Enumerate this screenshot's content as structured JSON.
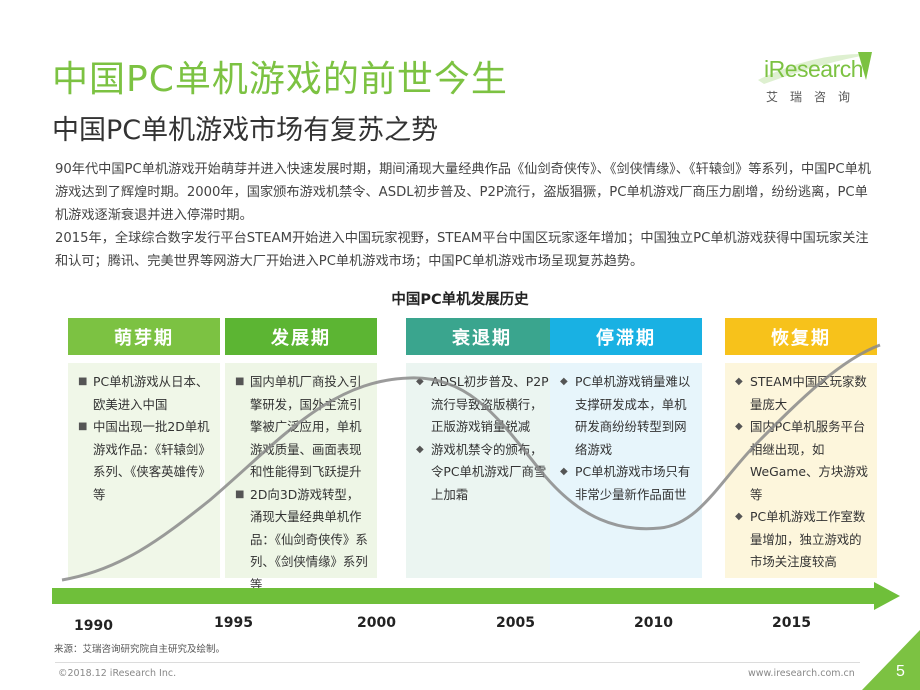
{
  "title": "中国PC单机游戏的前世今生",
  "subtitle": "中国PC单机游戏市场有复苏之势",
  "logo": {
    "word": "iResearch",
    "cn": "艾瑞咨询"
  },
  "intro": [
    "90年代中国PC单机游戏开始萌芽并进入快速发展时期，期间涌现大量经典作品《仙剑奇侠传》、《剑侠情缘》、《轩辕剑》等系列，中国PC单机游戏达到了辉煌时期。2000年，国家颁布游戏机禁令、ASDL初步普及、P2P流行，盗版猖獗，PC单机游戏厂商压力剧增，纷纷逃离，PC单机游戏逐渐衰退并进入停滞时期。",
    "2015年，全球综合数字发行平台STEAM开始进入中国玩家视野，STEAM平台中国区玩家逐年增加；中国独立PC单机游戏获得中国玩家关注和认可；腾讯、完美世界等网游大厂开始进入PC单机游戏市场；中国PC单机游戏市场呈现复苏趋势。"
  ],
  "chart_title": "中国PC单机发展历史",
  "stages": [
    {
      "name": "萌芽期",
      "color": "#7cc242",
      "fill": "#f0f7e8",
      "bullet": "■",
      "items": [
        "PC单机游戏从日本、欧美进入中国",
        "中国出现一批2D单机游戏作品：《轩辕剑》系列、《侠客英雄传》等"
      ]
    },
    {
      "name": "发展期",
      "color": "#5cb533",
      "fill": "#eef6e6",
      "bullet": "■",
      "items": [
        "国内单机厂商投入引擎研发，国外主流引擎被广泛应用，单机游戏质量、画面表现和性能得到飞跃提升",
        "2D向3D游戏转型，涌现大量经典单机作品：《仙剑奇侠传》系列、《剑侠情缘》系列等"
      ]
    },
    {
      "name": "衰退期",
      "color": "#3aa58e",
      "fill": "#ebf5f1",
      "bullet": "◆",
      "items": [
        "ADSL初步普及、P2P流行导致盗版横行，正版游戏销量锐减",
        "游戏机禁令的颁布，令PC单机游戏厂商雪上加霜"
      ]
    },
    {
      "name": "停滞期",
      "color": "#19b1e3",
      "fill": "#e7f5fb",
      "bullet": "◆",
      "items": [
        "PC单机游戏销量难以支撑研发成本，单机研发商纷纷转型到网络游戏",
        "PC单机游戏市场只有非常少量新作品面世"
      ]
    },
    {
      "name": "恢复期",
      "color": "#f7c21b",
      "fill": "#fdf6dc",
      "bullet": "◆",
      "items": [
        "STEAM中国区玩家数量庞大",
        "国内PC单机服务平台相继出现，如WeGame、方块游戏等",
        "PC单机游戏工作室数量增加，独立游戏的市场关注度较高"
      ]
    }
  ],
  "years": [
    "1990",
    "1995",
    "2000",
    "2005",
    "2010",
    "2015"
  ],
  "source": "来源：艾瑞咨询研究院自主研究及绘制。",
  "footer_left": "©2018.12 iResearch Inc.",
  "footer_right": "www.iresearch.com.cn",
  "page_number": "5",
  "colors": {
    "accent": "#7cc242",
    "arrow": "#6fbf3a",
    "curve": "#8a8a8a"
  }
}
